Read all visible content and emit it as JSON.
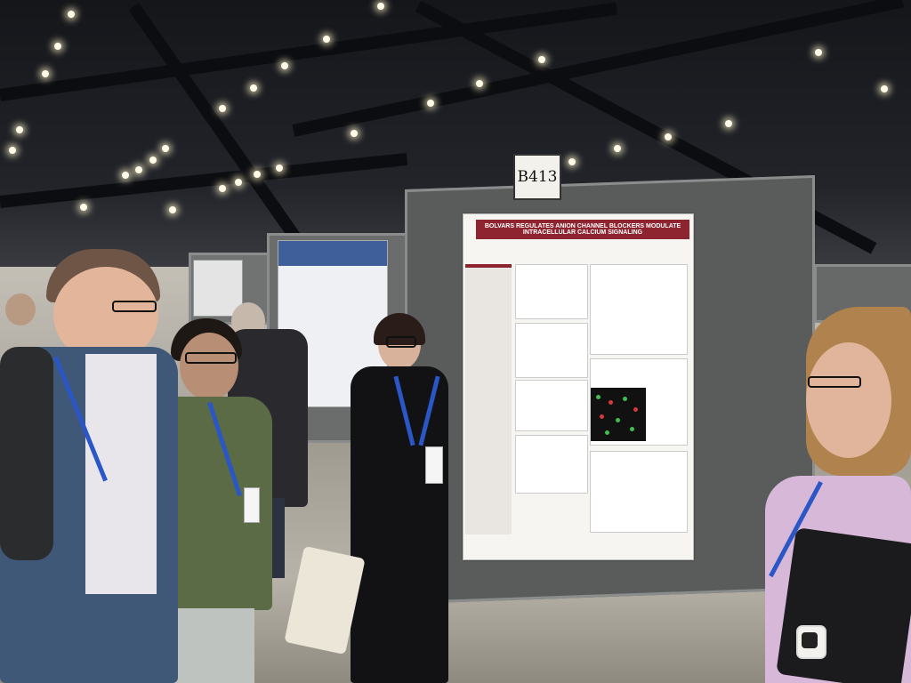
{
  "scene": {
    "booth_sign": "B413",
    "poster_title": "BOLVARS REGULATES ANION CHANNEL BLOCKERS MODULATE INTRACELLULAR CALCIUM SIGNALING",
    "colors": {
      "poster_accent": "#8e2430",
      "lanyard": "#2a56c6",
      "board_gray": "#595c5b",
      "ceiling": "#15161a",
      "floor": "#b8b3a8"
    }
  }
}
